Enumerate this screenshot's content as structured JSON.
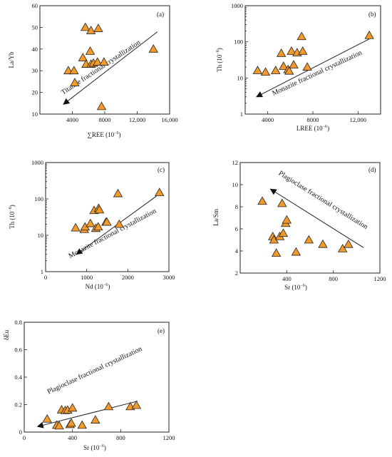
{
  "figure": {
    "panels": [
      {
        "id": "a",
        "label": "(a)",
        "ylabel": "La/Yb",
        "xlabel_main": "∑REE",
        "xlabel_unit": "(10",
        "xlabel_exp": "−6",
        "xlabel_close": ")",
        "annotation": "Titanite fractional crystallization",
        "xticks": [
          "4000",
          "8000",
          "12,000",
          "16,000"
        ],
        "yticks": [
          "10",
          "20",
          "30",
          "40",
          "50",
          "60"
        ]
      },
      {
        "id": "b",
        "label": "(b)",
        "ylabel": "Th (10",
        "ylabel_exp": "−6",
        "ylabel_close": ")",
        "xlabel_main": "LREE",
        "xlabel_unit": "(10",
        "xlabel_exp": "−6",
        "xlabel_close": ")",
        "annotation": "Monazite fractional crystallization",
        "xticks": [
          "4000",
          "8000",
          "12,000"
        ],
        "yticks": [
          "1",
          "10",
          "100",
          "1000"
        ]
      },
      {
        "id": "c",
        "label": "(c)",
        "ylabel": "Th (10",
        "ylabel_exp": "−6",
        "ylabel_close": ")",
        "xlabel_main": "Nd",
        "xlabel_unit": "(10",
        "xlabel_exp": "−6",
        "xlabel_close": ")",
        "annotation": "Monazite fractional crystallization",
        "xticks": [
          "0",
          "1000",
          "2000",
          "3000"
        ],
        "yticks": [
          "1",
          "10",
          "100",
          "1000"
        ]
      },
      {
        "id": "d",
        "label": "(d)",
        "ylabel": "La/Sm",
        "xlabel_main": "Sr",
        "xlabel_unit": "(10",
        "xlabel_exp": "−6",
        "xlabel_close": ")",
        "annotation": "Plagioclase fractional crystallization",
        "xticks": [
          "400",
          "800",
          "1200"
        ],
        "yticks": [
          "2",
          "4",
          "6",
          "8",
          "10",
          "12"
        ]
      },
      {
        "id": "e",
        "label": "(e)",
        "ylabel": "δEu",
        "xlabel_main": "Sr",
        "xlabel_unit": "(10",
        "xlabel_exp": "−6",
        "xlabel_close": ")",
        "annotation": "Plagioclase fractional crystallization",
        "xticks": [
          "0",
          "400",
          "800",
          "1200"
        ],
        "yticks": [
          "0",
          "0.2",
          "0.4",
          "0.6",
          "0.8"
        ]
      }
    ]
  },
  "chart_data": [
    {
      "type": "scatter",
      "panel": "(a)",
      "xlabel": "∑REE (10−6)",
      "ylabel": "La/Yb",
      "xlim": [
        0,
        16000
      ],
      "ylim": [
        10,
        60
      ],
      "yscale": "linear",
      "grid": false,
      "x": [
        3500,
        4200,
        4300,
        5300,
        5600,
        5700,
        6200,
        6300,
        6300,
        6600,
        7100,
        7200,
        7600,
        7900,
        14000
      ],
      "y": [
        30,
        30,
        24.5,
        36,
        50,
        33,
        39,
        33,
        48.5,
        33.5,
        34,
        49.5,
        13.5,
        34,
        40
      ],
      "trend": {
        "label": "Titanite fractional crystallization",
        "from": [
          14500,
          48
        ],
        "to": [
          2900,
          14.5
        ]
      }
    },
    {
      "type": "scatter",
      "panel": "(b)",
      "xlabel": "LREE (10−6)",
      "ylabel": "Th (10−6)",
      "xlim": [
        2000,
        14000
      ],
      "ylim": [
        1,
        1000
      ],
      "yscale": "log",
      "grid": false,
      "x": [
        3100,
        3800,
        4700,
        5200,
        5400,
        5800,
        5900,
        6100,
        6300,
        6600,
        7000,
        7100,
        7500,
        13000
      ],
      "y": [
        16,
        14.5,
        16,
        48,
        21,
        17,
        15.5,
        55,
        23,
        50,
        140,
        55,
        20,
        150
      ],
      "trend": {
        "label": "Monazite fractional crystallization",
        "from": [
          13000,
          120
        ],
        "to": [
          3000,
          3
        ]
      }
    },
    {
      "type": "scatter",
      "panel": "(c)",
      "xlabel": "Nd (10−6)",
      "ylabel": "Th (10−6)",
      "xlim": [
        0,
        3000
      ],
      "ylim": [
        1,
        1000
      ],
      "yscale": "log",
      "grid": false,
      "x": [
        730,
        940,
        960,
        1090,
        1180,
        1220,
        1280,
        1290,
        1310,
        1470,
        1490,
        1760,
        1790,
        2770
      ],
      "y": [
        16,
        14.5,
        17,
        21,
        48,
        15.5,
        17,
        55,
        50,
        23,
        23,
        140,
        20,
        150
      ],
      "trend": {
        "label": "Monazite fractional crystallization",
        "from": [
          2700,
          120
        ],
        "to": [
          750,
          3
        ]
      }
    },
    {
      "type": "scatter",
      "panel": "(d)",
      "xlabel": "Sr (10−6)",
      "ylabel": "La/Sm",
      "xlim": [
        0,
        1200
      ],
      "ylim": [
        2,
        12
      ],
      "yscale": "linear",
      "grid": false,
      "x": [
        190,
        280,
        290,
        310,
        340,
        360,
        370,
        390,
        400,
        480,
        590,
        710,
        880,
        930
      ],
      "y": [
        8.5,
        5.3,
        5,
        3.8,
        5.3,
        8.3,
        5.6,
        6.5,
        6.8,
        3.9,
        5,
        4.6,
        4.2,
        4.6
      ],
      "trend": {
        "label": "Plagioclase fractional crystallization",
        "from": [
          1060,
          4.3
        ],
        "to": [
          260,
          9.6
        ]
      }
    },
    {
      "type": "scatter",
      "panel": "(e)",
      "xlabel": "Sr (10−6)",
      "ylabel": "δEu",
      "xlim": [
        0,
        1200
      ],
      "ylim": [
        0,
        0.8
      ],
      "yscale": "linear",
      "grid": false,
      "x": [
        190,
        270,
        290,
        310,
        340,
        360,
        380,
        390,
        400,
        480,
        590,
        700,
        880,
        930
      ],
      "y": [
        0.095,
        0.05,
        0.045,
        0.162,
        0.157,
        0.16,
        0.055,
        0.065,
        0.175,
        0.05,
        0.088,
        0.185,
        0.185,
        0.195
      ],
      "trend": {
        "label": "Plagioclase fractional crystallization",
        "from": [
          940,
          0.225
        ],
        "to": [
          110,
          0.04
        ]
      }
    }
  ]
}
